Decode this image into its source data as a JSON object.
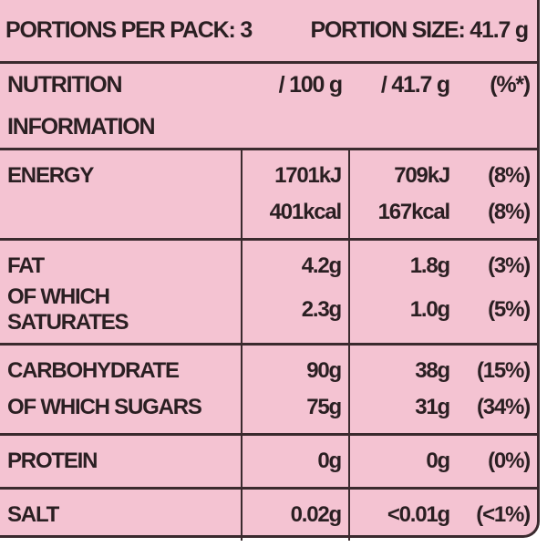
{
  "header": {
    "portions": "PORTIONS PER PACK: 3",
    "portion_size": "PORTION SIZE: 41.7 g"
  },
  "table": {
    "title": [
      "NUTRITION",
      "INFORMATION"
    ],
    "columns": [
      "/ 100 g",
      "/ 41.7 g",
      "(%*)"
    ],
    "groups": [
      [
        [
          "ENERGY",
          "1701kJ",
          "709kJ",
          "(8%)"
        ],
        [
          null,
          "401kcal",
          "167kcal",
          "(8%)"
        ]
      ],
      [
        [
          "FAT",
          "4.2g",
          "1.8g",
          "(3%)"
        ],
        [
          "OF WHICH SATURATES",
          "2.3g",
          "1.0g",
          "(5%)"
        ]
      ],
      [
        [
          "CARBOHYDRATE",
          "90g",
          "38g",
          "(15%)"
        ],
        [
          "OF WHICH SUGARS",
          "75g",
          "31g",
          "(34%)"
        ]
      ],
      [
        [
          "PROTEIN",
          "0g",
          "0g",
          "(0%)"
        ]
      ],
      [
        [
          "SALT",
          "0.02g",
          "<0.01g",
          "(<1%)"
        ]
      ]
    ]
  }
}
